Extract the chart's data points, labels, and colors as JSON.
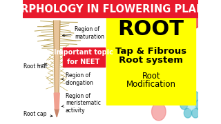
{
  "title_text": "MORPHOLOGY IN FLOWERING PLANTS",
  "title_bg": "#e8192c",
  "title_color": "#ffffff",
  "title_fontsize": 10.5,
  "bg_color": "#ffffff",
  "yellow_box_color": "#ffff00",
  "red_box_color": "#e8192c",
  "root_word": "ROOT",
  "root_fontsize": 22,
  "line2": "Tap & Fibrous",
  "line3": "Root system",
  "line4": "Root",
  "line5": "Modification",
  "body_fontsize": 9.5,
  "mod_fontsize": 8.5,
  "important_text": "Important topic\nfor NEET",
  "important_fontsize": 7,
  "label_maturation": "Region of\nmaturation",
  "label_elongation": "Region of\nelongation",
  "label_meristematic": "Region of\nmeristematic\nactivity",
  "label_roothair": "Root hair",
  "label_rootcap": "Root cap",
  "label_fontsize": 5.5,
  "floral_colors": [
    "#e8192c",
    "#3cb5c8",
    "#f08080"
  ]
}
